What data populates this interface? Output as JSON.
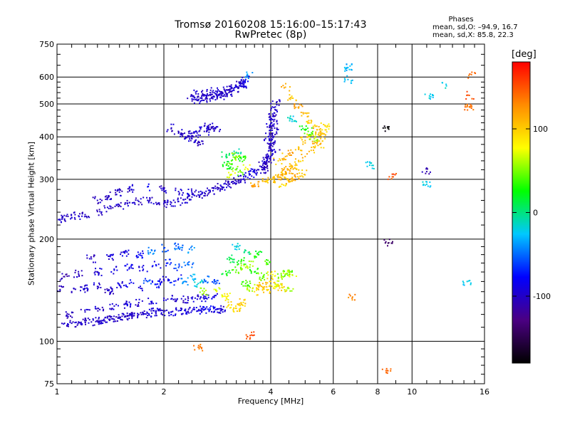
{
  "chart_data": {
    "type": "scatter",
    "title_line1": "Tromsø 20160208 15:16:00–15:17:43",
    "title_line2": "RwPretec (8p)",
    "stats": {
      "heading": "Phases",
      "o_mode": "mean, sd,O: –94.9, 16.7",
      "x_mode": "mean, sd,X:  85.8, 22.3"
    },
    "xlabel": "Frequency [MHz]",
    "ylabel": "Stationary phase Virtual Height [km]",
    "x_scale": "log",
    "y_scale": "log",
    "xlim": [
      1,
      16
    ],
    "ylim": [
      75,
      750
    ],
    "x_ticks": [
      1,
      2,
      4,
      6,
      8,
      10,
      16
    ],
    "y_ticks": [
      75,
      100,
      200,
      300,
      400,
      500,
      600,
      750
    ],
    "grid": true,
    "colorbar": {
      "label": "[deg]",
      "range": [
        -180,
        180
      ],
      "ticks": [
        100,
        0,
        -100
      ],
      "colors": [
        "#000000",
        "#4b0082",
        "#0000ff",
        "#00c8ff",
        "#00ff00",
        "#ffff00",
        "#ff8c00",
        "#ff0000"
      ]
    },
    "series": [
      {
        "x": [
          1.0,
          1.05,
          1.1,
          1.15,
          1.2,
          1.25,
          1.3,
          1.35,
          1.4,
          1.45,
          1.5,
          1.55,
          1.6,
          1.65,
          1.7,
          1.75,
          1.8,
          1.85,
          1.9,
          2.0,
          2.1,
          2.2,
          2.3,
          2.4,
          2.5,
          2.6,
          2.7,
          2.8,
          2.9,
          1.08,
          1.2,
          1.32,
          1.45,
          1.58,
          1.7,
          1.85,
          2.0,
          2.15,
          2.3,
          2.45,
          2.6,
          2.75
        ],
        "y": [
          114,
          113,
          113,
          114,
          114,
          114,
          115,
          115,
          116,
          116,
          117,
          118,
          119,
          119,
          120,
          120,
          121,
          121,
          122,
          122,
          122,
          123,
          123,
          123,
          123,
          124,
          124,
          124,
          124,
          120,
          122,
          124,
          127,
          128,
          130,
          131,
          132,
          133,
          133,
          134,
          134,
          135
        ],
        "phase": [
          -100,
          -100,
          -102,
          -98,
          -101,
          -100,
          -99,
          -100,
          -103,
          -97,
          -100,
          -100,
          -101,
          -99,
          -100,
          -98,
          -95,
          -92,
          -90,
          -95,
          -90,
          -88,
          -92,
          -95,
          -90,
          -85,
          -80,
          -92,
          -95,
          -105,
          -100,
          -98,
          -95,
          -92,
          -100,
          -90,
          -95,
          -98,
          -100,
          -95,
          -92,
          -90
        ]
      },
      {
        "x": [
          1.02,
          1.1,
          1.2,
          1.3,
          1.4,
          1.5,
          1.6,
          1.7,
          1.8,
          1.9,
          2.0,
          2.1,
          2.2,
          2.3,
          2.4,
          2.5,
          2.6,
          2.8,
          1.05,
          1.15,
          1.3,
          1.45,
          1.6,
          1.75,
          1.9,
          2.05,
          2.2,
          2.35,
          1.25,
          1.4,
          1.55,
          1.7,
          1.85,
          2.0,
          2.2,
          2.4
        ],
        "y": [
          142,
          140,
          143,
          145,
          141,
          146,
          148,
          144,
          150,
          147,
          152,
          149,
          153,
          150,
          155,
          148,
          152,
          150,
          155,
          158,
          160,
          162,
          165,
          163,
          168,
          170,
          165,
          168,
          175,
          178,
          182,
          180,
          185,
          188,
          190,
          186
        ],
        "phase": [
          -105,
          -100,
          -98,
          -95,
          -102,
          -90,
          -85,
          -95,
          -60,
          -80,
          -92,
          -70,
          -75,
          -40,
          -30,
          -20,
          -50,
          -60,
          -110,
          -100,
          -95,
          -92,
          -88,
          -90,
          -80,
          -70,
          -60,
          -50,
          -100,
          -95,
          -90,
          -80,
          -40,
          -60,
          -50,
          -40
        ]
      },
      {
        "x": [
          2.6,
          2.8,
          3.0,
          3.1,
          3.2,
          3.3,
          3.4,
          3.5,
          3.6,
          3.7,
          3.8,
          3.9,
          4.0,
          4.1,
          4.2,
          4.3,
          4.5,
          3.0,
          3.2,
          3.4,
          3.6,
          3.8,
          4.0,
          3.1,
          3.3,
          3.5,
          3.7,
          3.9,
          3.2,
          3.4,
          3.6,
          4.3,
          4.4,
          4.5,
          4.6
        ],
        "y": [
          140,
          142,
          135,
          128,
          125,
          130,
          148,
          144,
          140,
          145,
          148,
          142,
          150,
          145,
          147,
          144,
          143,
          158,
          162,
          165,
          160,
          155,
          158,
          175,
          172,
          168,
          180,
          170,
          190,
          185,
          178,
          155,
          158,
          160,
          157
        ],
        "phase": [
          60,
          70,
          80,
          90,
          95,
          100,
          40,
          60,
          90,
          100,
          110,
          100,
          90,
          80,
          70,
          100,
          60,
          20,
          40,
          60,
          30,
          50,
          80,
          10,
          30,
          60,
          20,
          40,
          -20,
          0,
          30,
          50,
          60,
          40,
          70
        ]
      },
      {
        "x": [
          1.0,
          1.05,
          1.1,
          1.15,
          1.2,
          1.3,
          1.4,
          1.5,
          1.6,
          1.7,
          1.8,
          1.9,
          2.0,
          2.1,
          2.2,
          2.3,
          2.4,
          2.5,
          2.6,
          2.7,
          2.8,
          2.9,
          3.0,
          3.1,
          3.2,
          3.3,
          3.4,
          3.5,
          3.6,
          3.7,
          3.8,
          3.9,
          4.0,
          1.3,
          1.4,
          1.5,
          1.6,
          1.8,
          2.0,
          2.2,
          2.4
        ],
        "y": [
          230,
          229,
          231,
          234,
          236,
          241,
          246,
          251,
          256,
          258,
          260,
          256,
          254,
          256,
          258,
          262,
          266,
          270,
          274,
          278,
          282,
          286,
          290,
          294,
          296,
          300,
          305,
          310,
          315,
          320,
          330,
          340,
          350,
          260,
          268,
          275,
          282,
          285,
          280,
          276,
          274
        ],
        "phase": [
          -100,
          -102,
          -98,
          -100,
          -100,
          -101,
          -99,
          -100,
          -100,
          -100,
          -98,
          -100,
          -100,
          -99,
          -101,
          -100,
          -100,
          -98,
          -102,
          -100,
          -99,
          -100,
          -101,
          -100,
          -98,
          -100,
          -95,
          -90,
          -92,
          -95,
          -100,
          -98,
          -95,
          -100,
          -98,
          -100,
          -99,
          -80,
          -100,
          -95,
          -90
        ]
      },
      {
        "x": [
          3.6,
          3.8,
          4.0,
          4.1,
          4.2,
          4.3,
          4.4,
          4.5,
          4.6,
          4.8,
          5.0,
          5.2,
          5.4,
          5.6,
          5.7,
          4.2,
          4.4,
          4.6,
          4.8,
          5.0,
          5.2,
          4.3,
          4.5,
          4.7,
          4.9
        ],
        "y": [
          290,
          296,
          300,
          302,
          305,
          310,
          316,
          320,
          328,
          338,
          350,
          365,
          385,
          410,
          430,
          340,
          350,
          360,
          372,
          390,
          405,
          290,
          298,
          305,
          312
        ],
        "phase": [
          120,
          110,
          100,
          110,
          115,
          100,
          120,
          110,
          105,
          100,
          110,
          105,
          110,
          100,
          90,
          100,
          110,
          120,
          105,
          110,
          100,
          95,
          110,
          120,
          100
        ]
      },
      {
        "x": [
          3.85,
          3.9,
          3.95,
          4.0,
          4.02,
          4.05,
          4.08,
          4.1,
          4.1,
          4.12,
          4.15,
          4.05,
          4.0,
          3.95,
          4.08,
          4.12
        ],
        "y": [
          320,
          335,
          350,
          370,
          390,
          410,
          430,
          450,
          470,
          490,
          505,
          460,
          430,
          400,
          380,
          360
        ],
        "phase": [
          -100,
          -102,
          -98,
          -100,
          -101,
          -99,
          -100,
          -102,
          -100,
          -98,
          -101,
          -100,
          -99,
          -100,
          -101,
          -100
        ]
      },
      {
        "x": [
          2.4,
          2.5,
          2.6,
          2.7,
          2.8,
          2.9,
          3.0,
          3.1,
          3.2,
          3.3,
          3.4,
          2.45,
          2.55,
          2.65,
          2.75,
          2.85,
          2.95,
          3.05,
          3.15,
          3.25,
          3.35,
          3.45
        ],
        "y": [
          530,
          535,
          532,
          540,
          545,
          540,
          550,
          555,
          562,
          575,
          590,
          515,
          520,
          518,
          525,
          530,
          528,
          540,
          548,
          560,
          570,
          605
        ],
        "phase": [
          -100,
          -98,
          -101,
          -100,
          -99,
          -100,
          -102,
          -98,
          -100,
          -101,
          -80,
          -100,
          -98,
          -100,
          -101,
          -100,
          -99,
          -100,
          -98,
          -95,
          -90,
          -40
        ]
      },
      {
        "x": [
          2.3,
          2.4,
          2.5,
          2.6,
          2.7,
          2.8,
          2.4,
          2.5,
          2.6,
          2.7,
          2.2,
          2.1
        ],
        "y": [
          400,
          410,
          405,
          415,
          420,
          425,
          395,
          385,
          430,
          435,
          410,
          425
        ],
        "phase": [
          -100,
          -102,
          -98,
          -100,
          -101,
          -99,
          -100,
          -102,
          -98,
          -100,
          -100,
          -101
        ]
      },
      {
        "x": [
          3.0,
          3.1,
          3.2,
          3.3,
          3.1,
          3.2,
          3.3,
          3.4,
          3.0,
          3.2
        ],
        "y": [
          330,
          340,
          350,
          345,
          310,
          320,
          315,
          325,
          355,
          360
        ],
        "phase": [
          20,
          40,
          60,
          30,
          70,
          50,
          40,
          80,
          10,
          -10
        ]
      },
      {
        "x": [
          4.4,
          4.6,
          4.8,
          5.0,
          5.2,
          5.4,
          5.6,
          4.6,
          4.9,
          5.1,
          5.3,
          5.5
        ],
        "y": [
          560,
          520,
          490,
          470,
          440,
          420,
          400,
          450,
          430,
          415,
          395,
          380
        ],
        "phase": [
          110,
          100,
          120,
          110,
          100,
          110,
          105,
          -20,
          20,
          40,
          60,
          100
        ]
      },
      {
        "x": [
          6.6,
          6.6,
          8.4,
          7.6,
          8.8,
          11.0,
          11.0,
          12.5,
          14.7,
          14.5,
          14.5,
          14.3,
          8.6,
          6.8,
          2.5,
          3.5,
          8.5,
          11.2
        ],
        "y": [
          640,
          590,
          425,
          330,
          305,
          316,
          290,
          565,
          610,
          530,
          490,
          150,
          195,
          135,
          96,
          104,
          82,
          528
        ],
        "phase": [
          -30,
          -30,
          -180,
          -20,
          150,
          -110,
          -20,
          -20,
          140,
          150,
          140,
          -20,
          -140,
          130,
          140,
          150,
          140,
          -20
        ]
      }
    ]
  }
}
